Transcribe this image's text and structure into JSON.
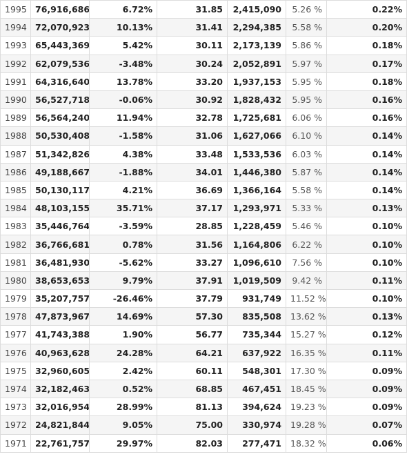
{
  "table": {
    "rows": [
      [
        "1995",
        "76,916,686",
        "6.72%",
        "31.85",
        "2,415,090",
        "5.26 %",
        "0.22%"
      ],
      [
        "1994",
        "72,070,923",
        "10.13%",
        "31.41",
        "2,294,385",
        "5.58 %",
        "0.20%"
      ],
      [
        "1993",
        "65,443,369",
        "5.42%",
        "30.11",
        "2,173,139",
        "5.86 %",
        "0.18%"
      ],
      [
        "1992",
        "62,079,536",
        "-3.48%",
        "30.24",
        "2,052,891",
        "5.97 %",
        "0.17%"
      ],
      [
        "1991",
        "64,316,640",
        "13.78%",
        "33.20",
        "1,937,153",
        "5.95 %",
        "0.18%"
      ],
      [
        "1990",
        "56,527,718",
        "-0.06%",
        "30.92",
        "1,828,432",
        "5.95 %",
        "0.16%"
      ],
      [
        "1989",
        "56,564,240",
        "11.94%",
        "32.78",
        "1,725,681",
        "6.06 %",
        "0.16%"
      ],
      [
        "1988",
        "50,530,408",
        "-1.58%",
        "31.06",
        "1,627,066",
        "6.10 %",
        "0.14%"
      ],
      [
        "1987",
        "51,342,826",
        "4.38%",
        "33.48",
        "1,533,536",
        "6.03 %",
        "0.14%"
      ],
      [
        "1986",
        "49,188,667",
        "-1.88%",
        "34.01",
        "1,446,380",
        "5.87 %",
        "0.14%"
      ],
      [
        "1985",
        "50,130,117",
        "4.21%",
        "36.69",
        "1,366,164",
        "5.58 %",
        "0.14%"
      ],
      [
        "1984",
        "48,103,155",
        "35.71%",
        "37.17",
        "1,293,971",
        "5.33 %",
        "0.13%"
      ],
      [
        "1983",
        "35,446,764",
        "-3.59%",
        "28.85",
        "1,228,459",
        "5.46 %",
        "0.10%"
      ],
      [
        "1982",
        "36,766,681",
        "0.78%",
        "31.56",
        "1,164,806",
        "6.22 %",
        "0.10%"
      ],
      [
        "1981",
        "36,481,930",
        "-5.62%",
        "33.27",
        "1,096,610",
        "7.56 %",
        "0.10%"
      ],
      [
        "1980",
        "38,653,653",
        "9.79%",
        "37.91",
        "1,019,509",
        "9.42 %",
        "0.11%"
      ],
      [
        "1979",
        "35,207,757",
        "-26.46%",
        "37.79",
        "931,749",
        "11.52 %",
        "0.10%"
      ],
      [
        "1978",
        "47,873,967",
        "14.69%",
        "57.30",
        "835,508",
        "13.62 %",
        "0.13%"
      ],
      [
        "1977",
        "41,743,388",
        "1.90%",
        "56.77",
        "735,344",
        "15.27 %",
        "0.12%"
      ],
      [
        "1976",
        "40,963,628",
        "24.28%",
        "64.21",
        "637,922",
        "16.35 %",
        "0.11%"
      ],
      [
        "1975",
        "32,960,605",
        "2.42%",
        "60.11",
        "548,301",
        "17.30 %",
        "0.09%"
      ],
      [
        "1974",
        "32,182,463",
        "0.52%",
        "68.85",
        "467,451",
        "18.45 %",
        "0.09%"
      ],
      [
        "1973",
        "32,016,954",
        "28.99%",
        "81.13",
        "394,624",
        "19.23 %",
        "0.09%"
      ],
      [
        "1972",
        "24,821,844",
        "9.05%",
        "75.00",
        "330,974",
        "19.28 %",
        "0.07%"
      ],
      [
        "1971",
        "22,761,757",
        "29.97%",
        "82.03",
        "277,471",
        "18.32 %",
        "0.06%"
      ]
    ]
  },
  "colors": {
    "row_even_bg": "#f5f5f5",
    "row_odd_bg": "#ffffff",
    "border": "#dcdcdc"
  }
}
